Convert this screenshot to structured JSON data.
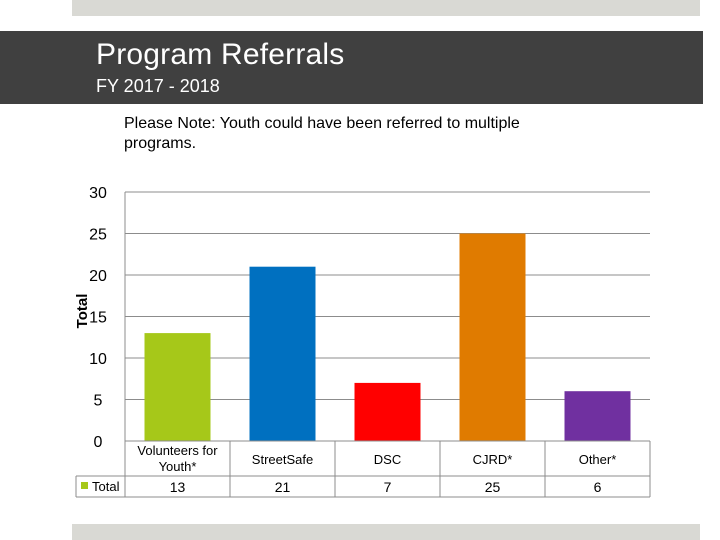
{
  "header": {
    "title": "Program Referrals",
    "subtitle": "FY 2017 - 2018"
  },
  "note": "Please Note: Youth could have been referred to multiple programs.",
  "chart_data": {
    "type": "bar",
    "categories": [
      "Volunteers for Youth*",
      "StreetSafe",
      "DSC",
      "CJRD*",
      "Other*"
    ],
    "category_lines": [
      [
        "Volunteers for",
        "Youth*"
      ],
      [
        "StreetSafe"
      ],
      [
        "DSC"
      ],
      [
        "CJRD*"
      ],
      [
        "Other*"
      ]
    ],
    "series": [
      {
        "name": "Total",
        "values": [
          13,
          21,
          7,
          25,
          6
        ]
      }
    ],
    "bar_colors": [
      "#a6c819",
      "#0070c0",
      "#ff0000",
      "#e07b00",
      "#7030a0"
    ],
    "legend_color": "#a6c819",
    "ylabel": "Total",
    "ylim": [
      0,
      30
    ],
    "yticks": [
      0,
      5,
      10,
      15,
      20,
      25,
      30
    ],
    "grid": true,
    "data_table": true
  }
}
